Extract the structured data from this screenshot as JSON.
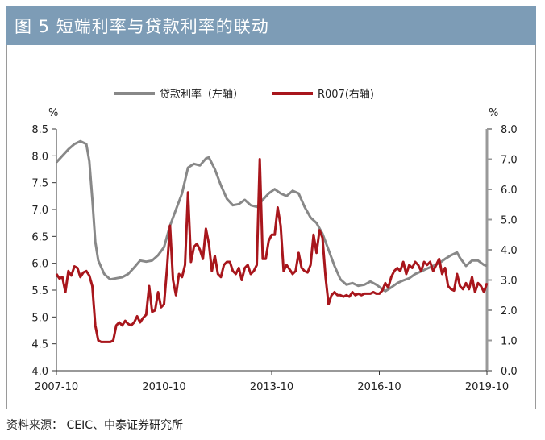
{
  "header": {
    "title": "图 5  短端利率与贷款利率的联动"
  },
  "footer": {
    "source": "资料来源： CEIC、中泰证券研究所"
  },
  "chart_data": {
    "type": "line",
    "left_unit": "%",
    "right_unit": "%",
    "left_axis": {
      "min": 4.0,
      "max": 8.5,
      "ticks": [
        "4.0",
        "4.5",
        "5.0",
        "5.5",
        "6.0",
        "6.5",
        "7.0",
        "7.5",
        "8.0",
        "8.5"
      ]
    },
    "right_axis": {
      "min": 0.0,
      "max": 8.0,
      "ticks": [
        "0.0",
        "1.0",
        "2.0",
        "3.0",
        "4.0",
        "5.0",
        "6.0",
        "7.0",
        "8.0"
      ]
    },
    "x_axis": {
      "start": "2007-10",
      "end": "2019-10",
      "tick_labels": [
        "2007-10",
        "2010-10",
        "2013-10",
        "2016-10",
        "2019-10"
      ],
      "tick_positions": [
        "2007-10",
        "2010-10",
        "2013-10",
        "2016-10",
        "2019-10"
      ]
    },
    "legend_position": "top",
    "colors": {
      "loan": "#888888",
      "r007": "#a8161c",
      "title_bg": "#7d9cb6"
    },
    "series": [
      {
        "name": "贷款利率（左轴）",
        "axis": "left",
        "points": [
          [
            "2007-10",
            7.88
          ],
          [
            "2007-12",
            8.0
          ],
          [
            "2008-02",
            8.12
          ],
          [
            "2008-04",
            8.22
          ],
          [
            "2008-06",
            8.27
          ],
          [
            "2008-08",
            8.22
          ],
          [
            "2008-09",
            7.9
          ],
          [
            "2008-10",
            7.2
          ],
          [
            "2008-11",
            6.4
          ],
          [
            "2008-12",
            6.05
          ],
          [
            "2009-02",
            5.8
          ],
          [
            "2009-04",
            5.7
          ],
          [
            "2009-06",
            5.72
          ],
          [
            "2009-08",
            5.74
          ],
          [
            "2009-10",
            5.8
          ],
          [
            "2009-12",
            5.92
          ],
          [
            "2010-02",
            6.05
          ],
          [
            "2010-04",
            6.03
          ],
          [
            "2010-06",
            6.05
          ],
          [
            "2010-08",
            6.15
          ],
          [
            "2010-10",
            6.3
          ],
          [
            "2010-12",
            6.7
          ],
          [
            "2011-02",
            7.0
          ],
          [
            "2011-04",
            7.3
          ],
          [
            "2011-06",
            7.78
          ],
          [
            "2011-08",
            7.85
          ],
          [
            "2011-10",
            7.82
          ],
          [
            "2011-12",
            7.95
          ],
          [
            "2012-01",
            7.97
          ],
          [
            "2012-03",
            7.75
          ],
          [
            "2012-05",
            7.45
          ],
          [
            "2012-07",
            7.2
          ],
          [
            "2012-09",
            7.08
          ],
          [
            "2012-11",
            7.1
          ],
          [
            "2013-01",
            7.18
          ],
          [
            "2013-03",
            7.08
          ],
          [
            "2013-05",
            7.05
          ],
          [
            "2013-07",
            7.18
          ],
          [
            "2013-09",
            7.3
          ],
          [
            "2013-11",
            7.38
          ],
          [
            "2014-01",
            7.3
          ],
          [
            "2014-03",
            7.25
          ],
          [
            "2014-05",
            7.35
          ],
          [
            "2014-07",
            7.3
          ],
          [
            "2014-09",
            7.05
          ],
          [
            "2014-11",
            6.85
          ],
          [
            "2015-01",
            6.75
          ],
          [
            "2015-03",
            6.55
          ],
          [
            "2015-05",
            6.25
          ],
          [
            "2015-07",
            5.95
          ],
          [
            "2015-09",
            5.7
          ],
          [
            "2015-11",
            5.6
          ],
          [
            "2016-01",
            5.63
          ],
          [
            "2016-03",
            5.58
          ],
          [
            "2016-05",
            5.6
          ],
          [
            "2016-07",
            5.66
          ],
          [
            "2016-09",
            5.6
          ],
          [
            "2016-11",
            5.52
          ],
          [
            "2016-12",
            5.48
          ],
          [
            "2017-02",
            5.55
          ],
          [
            "2017-04",
            5.63
          ],
          [
            "2017-06",
            5.68
          ],
          [
            "2017-08",
            5.72
          ],
          [
            "2017-10",
            5.8
          ],
          [
            "2017-12",
            5.85
          ],
          [
            "2018-02",
            5.9
          ],
          [
            "2018-04",
            5.95
          ],
          [
            "2018-06",
            6.0
          ],
          [
            "2018-08",
            6.08
          ],
          [
            "2018-10",
            6.15
          ],
          [
            "2018-12",
            6.2
          ],
          [
            "2019-01",
            6.1
          ],
          [
            "2019-03",
            5.95
          ],
          [
            "2019-05",
            6.05
          ],
          [
            "2019-07",
            6.05
          ],
          [
            "2019-09",
            5.97
          ],
          [
            "2019-10",
            5.95
          ]
        ]
      },
      {
        "name": "R007(右轴)",
        "axis": "right",
        "points": [
          [
            "2007-10",
            3.2
          ],
          [
            "2007-11",
            3.05
          ],
          [
            "2007-12",
            3.1
          ],
          [
            "2008-01",
            2.6
          ],
          [
            "2008-02",
            3.3
          ],
          [
            "2008-03",
            3.15
          ],
          [
            "2008-04",
            3.45
          ],
          [
            "2008-05",
            3.4
          ],
          [
            "2008-06",
            3.1
          ],
          [
            "2008-07",
            3.25
          ],
          [
            "2008-08",
            3.3
          ],
          [
            "2008-09",
            3.15
          ],
          [
            "2008-10",
            2.8
          ],
          [
            "2008-11",
            1.5
          ],
          [
            "2008-12",
            1.0
          ],
          [
            "2009-01",
            0.95
          ],
          [
            "2009-02",
            0.95
          ],
          [
            "2009-04",
            0.95
          ],
          [
            "2009-05",
            1.0
          ],
          [
            "2009-06",
            1.5
          ],
          [
            "2009-07",
            1.6
          ],
          [
            "2009-08",
            1.5
          ],
          [
            "2009-09",
            1.65
          ],
          [
            "2009-10",
            1.55
          ],
          [
            "2009-11",
            1.5
          ],
          [
            "2009-12",
            1.6
          ],
          [
            "2010-01",
            1.8
          ],
          [
            "2010-02",
            1.6
          ],
          [
            "2010-03",
            1.75
          ],
          [
            "2010-04",
            1.85
          ],
          [
            "2010-05",
            2.8
          ],
          [
            "2010-06",
            1.95
          ],
          [
            "2010-07",
            2.0
          ],
          [
            "2010-08",
            2.6
          ],
          [
            "2010-09",
            2.1
          ],
          [
            "2010-10",
            2.2
          ],
          [
            "2010-11",
            3.4
          ],
          [
            "2010-12",
            4.8
          ],
          [
            "2011-01",
            3.0
          ],
          [
            "2011-02",
            2.5
          ],
          [
            "2011-03",
            3.2
          ],
          [
            "2011-04",
            3.1
          ],
          [
            "2011-05",
            3.5
          ],
          [
            "2011-06",
            5.9
          ],
          [
            "2011-07",
            3.6
          ],
          [
            "2011-08",
            4.1
          ],
          [
            "2011-09",
            4.2
          ],
          [
            "2011-10",
            4.0
          ],
          [
            "2011-11",
            3.7
          ],
          [
            "2011-12",
            4.7
          ],
          [
            "2012-01",
            4.2
          ],
          [
            "2012-02",
            3.3
          ],
          [
            "2012-03",
            3.8
          ],
          [
            "2012-04",
            3.2
          ],
          [
            "2012-05",
            3.1
          ],
          [
            "2012-06",
            3.5
          ],
          [
            "2012-07",
            3.6
          ],
          [
            "2012-08",
            3.6
          ],
          [
            "2012-09",
            3.3
          ],
          [
            "2012-10",
            3.2
          ],
          [
            "2012-11",
            3.4
          ],
          [
            "2012-12",
            3.0
          ],
          [
            "2013-01",
            3.4
          ],
          [
            "2013-02",
            3.5
          ],
          [
            "2013-03",
            3.2
          ],
          [
            "2013-04",
            3.3
          ],
          [
            "2013-05",
            3.5
          ],
          [
            "2013-06",
            7.0
          ],
          [
            "2013-07",
            3.7
          ],
          [
            "2013-08",
            3.7
          ],
          [
            "2013-09",
            4.3
          ],
          [
            "2013-10",
            4.5
          ],
          [
            "2013-11",
            4.5
          ],
          [
            "2013-12",
            5.4
          ],
          [
            "2014-01",
            4.8
          ],
          [
            "2014-02",
            3.3
          ],
          [
            "2014-03",
            3.5
          ],
          [
            "2014-04",
            3.35
          ],
          [
            "2014-05",
            3.2
          ],
          [
            "2014-06",
            3.3
          ],
          [
            "2014-07",
            3.9
          ],
          [
            "2014-08",
            3.4
          ],
          [
            "2014-09",
            3.3
          ],
          [
            "2014-10",
            3.25
          ],
          [
            "2014-11",
            3.5
          ],
          [
            "2014-12",
            4.5
          ],
          [
            "2015-01",
            3.9
          ],
          [
            "2015-02",
            4.65
          ],
          [
            "2015-03",
            4.4
          ],
          [
            "2015-04",
            3.1
          ],
          [
            "2015-05",
            2.2
          ],
          [
            "2015-06",
            2.5
          ],
          [
            "2015-07",
            2.6
          ],
          [
            "2015-08",
            2.5
          ],
          [
            "2015-09",
            2.5
          ],
          [
            "2015-10",
            2.45
          ],
          [
            "2015-11",
            2.5
          ],
          [
            "2015-12",
            2.45
          ],
          [
            "2016-01",
            2.6
          ],
          [
            "2016-02",
            2.5
          ],
          [
            "2016-03",
            2.55
          ],
          [
            "2016-04",
            2.5
          ],
          [
            "2016-05",
            2.55
          ],
          [
            "2016-06",
            2.55
          ],
          [
            "2016-07",
            2.55
          ],
          [
            "2016-08",
            2.6
          ],
          [
            "2016-09",
            2.55
          ],
          [
            "2016-10",
            2.55
          ],
          [
            "2016-11",
            2.65
          ],
          [
            "2016-12",
            2.9
          ],
          [
            "2017-01",
            2.75
          ],
          [
            "2017-02",
            3.1
          ],
          [
            "2017-03",
            3.3
          ],
          [
            "2017-04",
            3.4
          ],
          [
            "2017-05",
            3.3
          ],
          [
            "2017-06",
            3.6
          ],
          [
            "2017-07",
            3.2
          ],
          [
            "2017-08",
            3.5
          ],
          [
            "2017-09",
            3.4
          ],
          [
            "2017-10",
            3.6
          ],
          [
            "2017-11",
            3.5
          ],
          [
            "2017-12",
            3.3
          ],
          [
            "2018-01",
            3.6
          ],
          [
            "2018-02",
            3.5
          ],
          [
            "2018-03",
            3.6
          ],
          [
            "2018-04",
            3.3
          ],
          [
            "2018-05",
            3.5
          ],
          [
            "2018-06",
            3.7
          ],
          [
            "2018-07",
            3.2
          ],
          [
            "2018-08",
            3.4
          ],
          [
            "2018-09",
            2.8
          ],
          [
            "2018-10",
            2.7
          ],
          [
            "2018-11",
            2.65
          ],
          [
            "2018-12",
            3.2
          ],
          [
            "2019-01",
            2.8
          ],
          [
            "2019-02",
            2.7
          ],
          [
            "2019-03",
            2.9
          ],
          [
            "2019-04",
            2.7
          ],
          [
            "2019-05",
            3.1
          ],
          [
            "2019-06",
            2.6
          ],
          [
            "2019-07",
            2.9
          ],
          [
            "2019-08",
            2.8
          ],
          [
            "2019-09",
            2.6
          ],
          [
            "2019-10",
            2.9
          ]
        ]
      }
    ]
  }
}
